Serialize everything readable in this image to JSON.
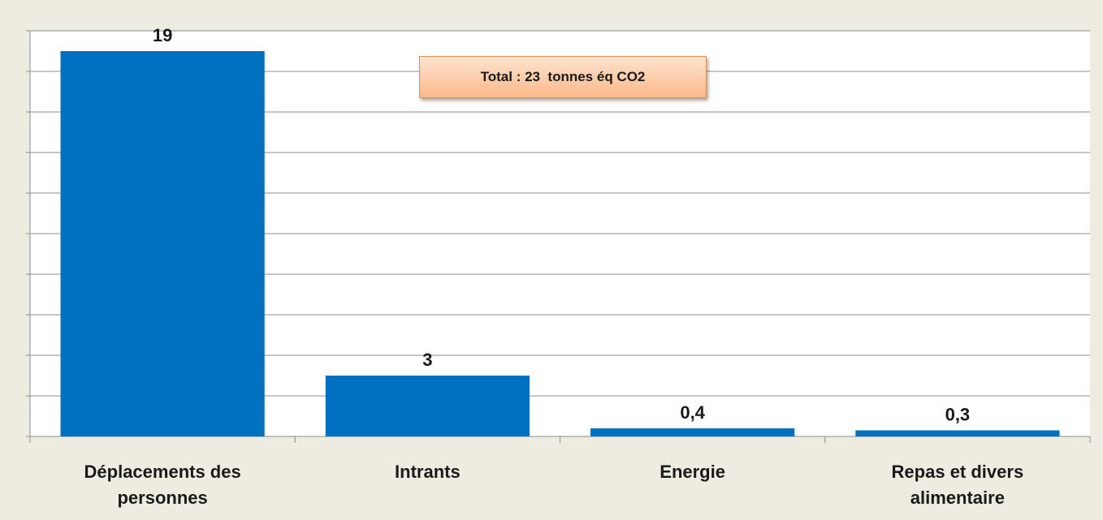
{
  "chart_data": {
    "type": "bar",
    "annotation": "Total : 23  tonnes éq CO2",
    "categories": [
      "Déplacements des personnes",
      "Intrants",
      "Energie",
      "Repas et divers alimentaire"
    ],
    "values": [
      19,
      3,
      0.4,
      0.3
    ],
    "value_labels": [
      "19",
      "3",
      "0,4",
      "0,3"
    ],
    "color": "#0070c0",
    "ylim": [
      0,
      20
    ],
    "yticks": [
      0,
      2,
      4,
      6,
      8,
      10,
      12,
      14,
      16,
      18,
      20
    ],
    "grid": true
  }
}
